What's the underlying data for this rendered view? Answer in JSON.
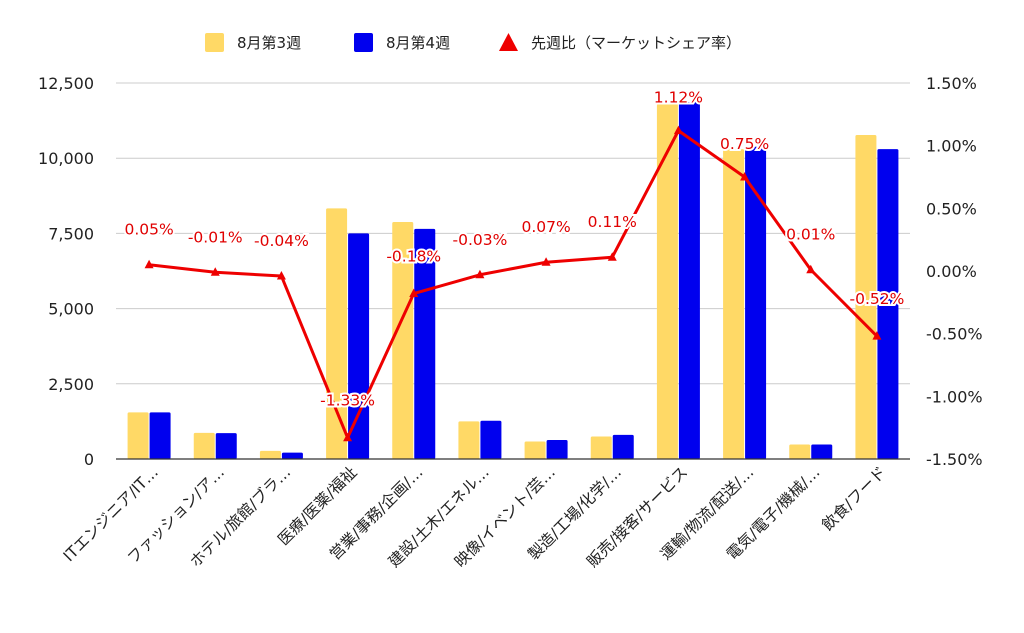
{
  "chart_data": {
    "type": "bar",
    "categories": [
      "ITエンジニア/IT…",
      "ファッション/ア…",
      "ホテル/旅館/ブラ…",
      "医療/医薬/福祉",
      "営業/事務/企画/…",
      "建設/土木/エネル…",
      "映像/イベント/芸…",
      "製造/工場/化学/…",
      "販売/接客/サービス",
      "運輸/物流/配送/…",
      "電気/電子/機械/…",
      "飲食/フード"
    ],
    "series": [
      {
        "name": "8月第3週",
        "type": "bar",
        "axis": "left",
        "color": "#FFD966",
        "values": [
          1550,
          870,
          270,
          8330,
          7880,
          1250,
          580,
          750,
          11800,
          10300,
          480,
          10770
        ]
      },
      {
        "name": "8月第4週",
        "type": "bar",
        "axis": "left",
        "color": "#0000EE",
        "values": [
          1550,
          860,
          210,
          7500,
          7650,
          1270,
          630,
          800,
          11870,
          10380,
          480,
          10300
        ]
      },
      {
        "name": "先週比（マーケットシェア率）",
        "type": "line",
        "axis": "right",
        "color": "#EE0000",
        "marker": "triangle",
        "values": [
          0.05,
          -0.01,
          -0.04,
          -1.33,
          -0.18,
          -0.03,
          0.07,
          0.11,
          1.12,
          0.75,
          0.01,
          -0.52
        ],
        "labels": [
          "0.05%",
          "-0.01%",
          "-0.04%",
          "-1.33%",
          "-0.18%",
          "-0.03%",
          "0.07%",
          "0.11%",
          "1.12%",
          "0.75%",
          "0.01%",
          "-0.52%"
        ]
      }
    ],
    "y_left": {
      "ticks": [
        "0",
        "2,500",
        "5,000",
        "7,500",
        "10,000",
        "12,500"
      ],
      "ylim": [
        0,
        12500
      ]
    },
    "y_right": {
      "ticks": [
        "-1.50%",
        "-1.00%",
        "-0.50%",
        "0.00%",
        "0.50%",
        "1.00%",
        "1.50%"
      ],
      "ylim": [
        -1.5,
        1.5
      ]
    },
    "grid": true,
    "legend_position": "top-center"
  }
}
